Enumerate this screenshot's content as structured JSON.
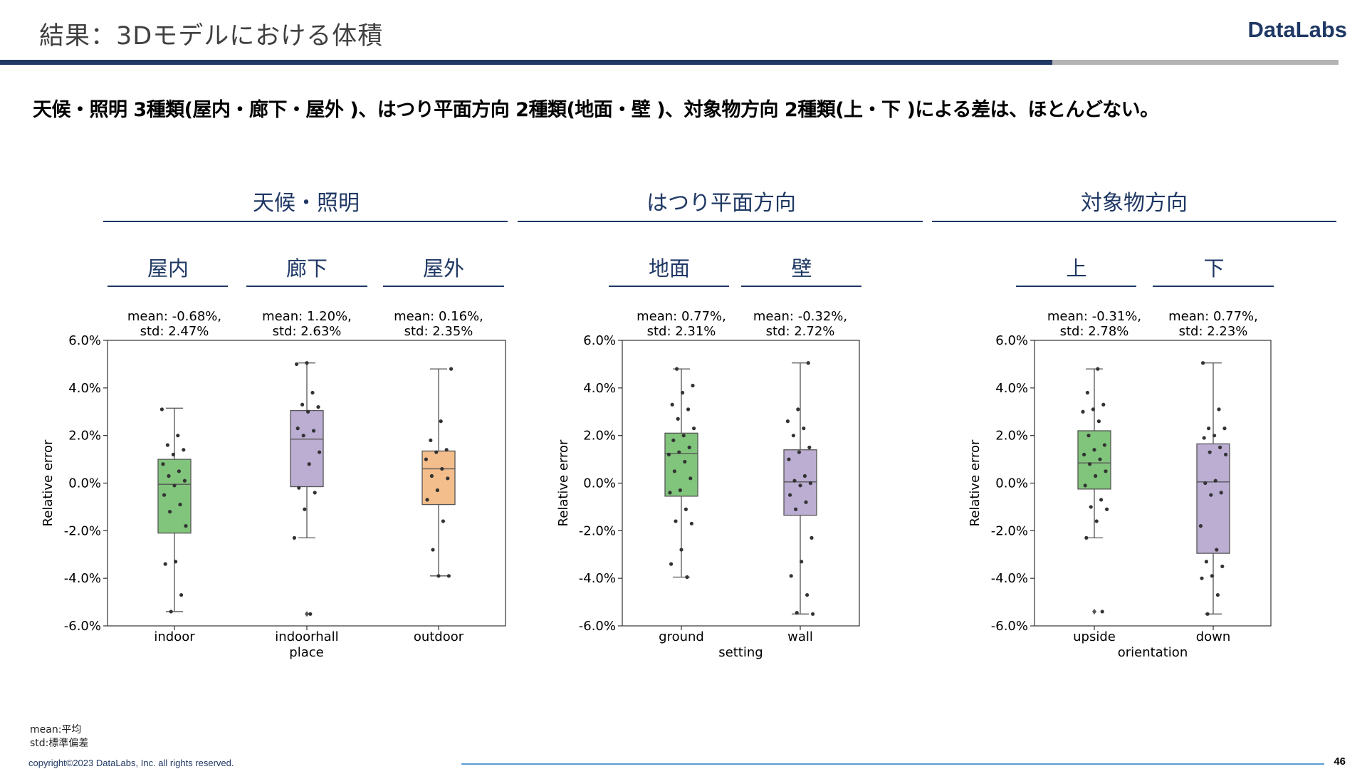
{
  "slide": {
    "title": "結果：3Dモデルにおける体積",
    "brand": "DataLabs",
    "headline": "天候・照明 3種類(屋内・廊下・屋外 )、はつり平面方向 2種類(地面・壁 )、対象物方向 2種類(上・下 )による差は、ほとんどない。",
    "notes": [
      "mean:平均",
      "std:標準偏差"
    ],
    "copyright": "copyright©2023 DataLabs, Inc. all rights reserved.",
    "page_number": "46"
  },
  "groups": [
    {
      "title": "天候・照明",
      "subs": [
        "屋内",
        "廊下",
        "屋外"
      ]
    },
    {
      "title": "はつり平面方向",
      "subs": [
        "地面",
        "壁"
      ]
    },
    {
      "title": "対象物方向",
      "subs": [
        "上",
        "下"
      ]
    }
  ],
  "colors": {
    "green": "#81c47c",
    "purple": "#bcadd3",
    "orange": "#f3be8b",
    "axis": "#000000",
    "box_edge": "#555555",
    "point": "#333333",
    "title_navy": "#1f3864"
  },
  "chart_data": [
    {
      "type": "box",
      "xlabel": "place",
      "ylabel": "Relative error",
      "ylim": [
        -6.0,
        6.0
      ],
      "yticks": [
        "6.0%",
        "4.0%",
        "2.0%",
        "0.0%",
        "-2.0%",
        "-4.0%",
        "-6.0%"
      ],
      "yticks_values": [
        6,
        4,
        2,
        0,
        -2,
        -4,
        -6
      ],
      "categories": [
        "indoor",
        "indoorhall",
        "outdoor"
      ],
      "stats_labels": [
        [
          "mean: -0.68%,",
          "std: 2.47%"
        ],
        [
          "mean: 1.20%,",
          "std: 2.63%"
        ],
        [
          "mean: 0.16%,",
          "std: 2.35%"
        ]
      ],
      "boxes": [
        {
          "color": "green",
          "q1": -2.1,
          "median": -0.05,
          "q3": 1.0,
          "whisker_low": -5.4,
          "whisker_high": 3.15,
          "outliers": [],
          "points": [
            3.1,
            2.0,
            1.6,
            1.4,
            1.2,
            0.8,
            0.5,
            0.3,
            0.1,
            -0.1,
            -0.5,
            -0.9,
            -1.2,
            -1.8,
            -3.3,
            -3.4,
            -4.7,
            -5.4
          ]
        },
        {
          "color": "purple",
          "q1": -0.15,
          "median": 1.85,
          "q3": 3.05,
          "whisker_low": -2.3,
          "whisker_high": 5.05,
          "outliers": [
            -5.5
          ],
          "points": [
            5.05,
            5.0,
            3.8,
            3.3,
            3.2,
            3.0,
            2.3,
            2.2,
            2.0,
            1.3,
            0.8,
            -0.2,
            -0.4,
            -1.1,
            -2.3,
            -5.5
          ]
        },
        {
          "color": "orange",
          "q1": -0.9,
          "median": 0.6,
          "q3": 1.35,
          "whisker_low": -3.9,
          "whisker_high": 4.8,
          "outliers": [],
          "points": [
            4.8,
            2.6,
            1.8,
            1.4,
            1.3,
            1.0,
            0.6,
            0.3,
            0.2,
            -0.3,
            -0.7,
            -1.6,
            -2.8,
            -3.9,
            -3.9
          ]
        }
      ]
    },
    {
      "type": "box",
      "xlabel": "setting",
      "ylabel": "Relative error",
      "ylim": [
        -6.0,
        6.0
      ],
      "yticks": [
        "6.0%",
        "4.0%",
        "2.0%",
        "0.0%",
        "-2.0%",
        "-4.0%",
        "-6.0%"
      ],
      "yticks_values": [
        6,
        4,
        2,
        0,
        -2,
        -4,
        -6
      ],
      "categories": [
        "ground",
        "wall"
      ],
      "stats_labels": [
        [
          "mean: 0.77%,",
          "std: 2.31%"
        ],
        [
          "mean: -0.32%,",
          "std: 2.72%"
        ]
      ],
      "boxes": [
        {
          "color": "green",
          "q1": -0.55,
          "median": 1.25,
          "q3": 2.1,
          "whisker_low": -3.95,
          "whisker_high": 4.8,
          "outliers": [],
          "points": [
            4.8,
            4.1,
            3.8,
            3.3,
            3.1,
            2.7,
            2.3,
            2.0,
            1.8,
            1.5,
            1.3,
            1.2,
            0.9,
            0.5,
            0.2,
            -0.3,
            -0.4,
            -1.1,
            -1.6,
            -1.7,
            -2.8,
            -3.4,
            -3.95
          ]
        },
        {
          "color": "purple",
          "q1": -1.35,
          "median": 0.05,
          "q3": 1.4,
          "whisker_low": -5.5,
          "whisker_high": 5.05,
          "outliers": [],
          "points": [
            5.05,
            3.1,
            2.6,
            2.3,
            2.0,
            1.5,
            1.3,
            1.0,
            0.3,
            0.1,
            0.0,
            -0.1,
            -0.5,
            -0.8,
            -1.1,
            -2.3,
            -3.3,
            -3.9,
            -4.7,
            -5.45,
            -5.5
          ]
        }
      ]
    },
    {
      "type": "box",
      "xlabel": "orientation",
      "ylabel": "Relative error",
      "ylim": [
        -6.0,
        6.0
      ],
      "yticks": [
        "6.0%",
        "4.0%",
        "2.0%",
        "0.0%",
        "-2.0%",
        "-4.0%",
        "-6.0%"
      ],
      "yticks_values": [
        6,
        4,
        2,
        0,
        -2,
        -4,
        -6
      ],
      "categories": [
        "upside",
        "down"
      ],
      "stats_labels": [
        [
          "mean: -0.31%,",
          "std: 2.78%"
        ],
        [
          "mean: 0.77%,",
          "std: 2.23%"
        ]
      ],
      "boxes": [
        {
          "color": "green",
          "q1": -0.25,
          "median": 0.85,
          "q3": 2.2,
          "whisker_low": -2.3,
          "whisker_high": 4.8,
          "outliers": [
            -5.4
          ],
          "points": [
            4.8,
            3.8,
            3.3,
            3.1,
            3.0,
            2.6,
            2.0,
            1.6,
            1.4,
            1.2,
            1.0,
            0.8,
            0.5,
            0.3,
            -0.1,
            -0.7,
            -1.0,
            -1.1,
            -1.6,
            -2.3,
            -5.4
          ]
        },
        {
          "color": "purple",
          "q1": -2.95,
          "median": 0.05,
          "q3": 1.65,
          "whisker_low": -5.5,
          "whisker_high": 5.05,
          "outliers": [],
          "points": [
            5.05,
            3.1,
            2.3,
            2.3,
            2.0,
            1.9,
            1.5,
            1.3,
            1.2,
            0.1,
            0.0,
            -0.4,
            -0.5,
            -1.8,
            -2.8,
            -3.3,
            -3.5,
            -3.9,
            -4.0,
            -4.7,
            -5.5
          ]
        }
      ]
    }
  ]
}
